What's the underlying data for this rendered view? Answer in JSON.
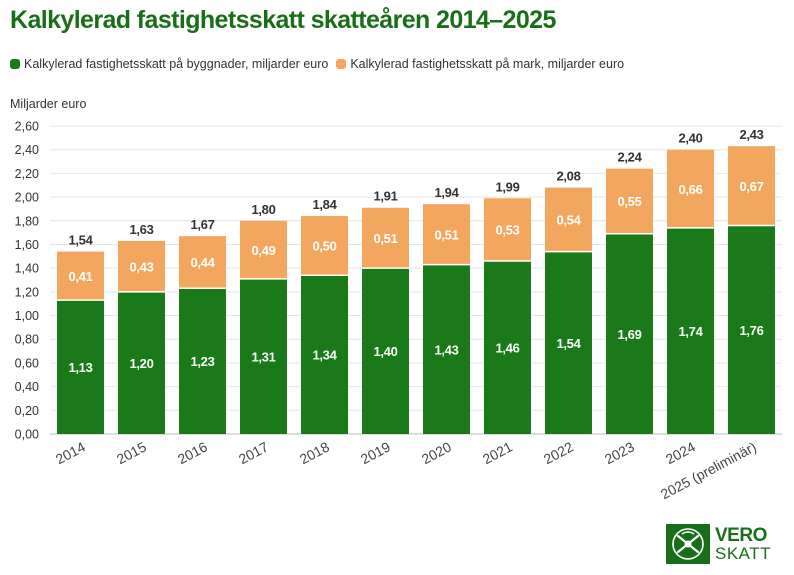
{
  "title": "Kalkylerad fastighetsskatt skatteåren 2014–2025",
  "legend": [
    {
      "label": "Kalkylerad fastighetsskatt på byggnader, miljarder euro",
      "color": "#1a7a1a"
    },
    {
      "label": "Kalkylerad fastighetsskatt på mark, miljarder euro",
      "color": "#f2a65e"
    }
  ],
  "logo": {
    "line1": "VERO",
    "line2": "SKATT"
  },
  "chart_data": {
    "type": "bar",
    "stacked": true,
    "ylabel": "Miljarder euro",
    "ylim": [
      0,
      2.6
    ],
    "yticks": [
      "0,00",
      "0,20",
      "0,40",
      "0,60",
      "0,80",
      "1,00",
      "1,20",
      "1,40",
      "1,60",
      "1,80",
      "2,00",
      "2,20",
      "2,40",
      "2,60"
    ],
    "categories": [
      "2014",
      "2015",
      "2016",
      "2017",
      "2018",
      "2019",
      "2020",
      "2021",
      "2022",
      "2023",
      "2024",
      "2025 (preliminär)"
    ],
    "series": [
      {
        "name": "Kalkylerad fastighetsskatt på byggnader, miljarder euro",
        "color": "#1a7a1a",
        "values": [
          1.13,
          1.2,
          1.23,
          1.31,
          1.34,
          1.4,
          1.43,
          1.46,
          1.54,
          1.69,
          1.74,
          1.76
        ],
        "labels": [
          "1,13",
          "1,20",
          "1,23",
          "1,31",
          "1,34",
          "1,40",
          "1,43",
          "1,46",
          "1,54",
          "1,69",
          "1,74",
          "1,76"
        ]
      },
      {
        "name": "Kalkylerad fastighetsskatt på mark, miljarder euro",
        "color": "#f2a65e",
        "values": [
          0.41,
          0.43,
          0.44,
          0.49,
          0.5,
          0.51,
          0.51,
          0.53,
          0.54,
          0.55,
          0.66,
          0.67
        ],
        "labels": [
          "0,41",
          "0,43",
          "0,44",
          "0,49",
          "0,50",
          "0,51",
          "0,51",
          "0,53",
          "0,54",
          "0,55",
          "0,66",
          "0,67"
        ]
      }
    ],
    "totals": [
      1.54,
      1.63,
      1.67,
      1.8,
      1.84,
      1.91,
      1.94,
      1.99,
      2.08,
      2.24,
      2.4,
      2.43
    ],
    "total_labels": [
      "1,54",
      "1,63",
      "1,67",
      "1,80",
      "1,84",
      "1,91",
      "1,94",
      "1,99",
      "2,08",
      "2,24",
      "2,40",
      "2,43"
    ]
  }
}
